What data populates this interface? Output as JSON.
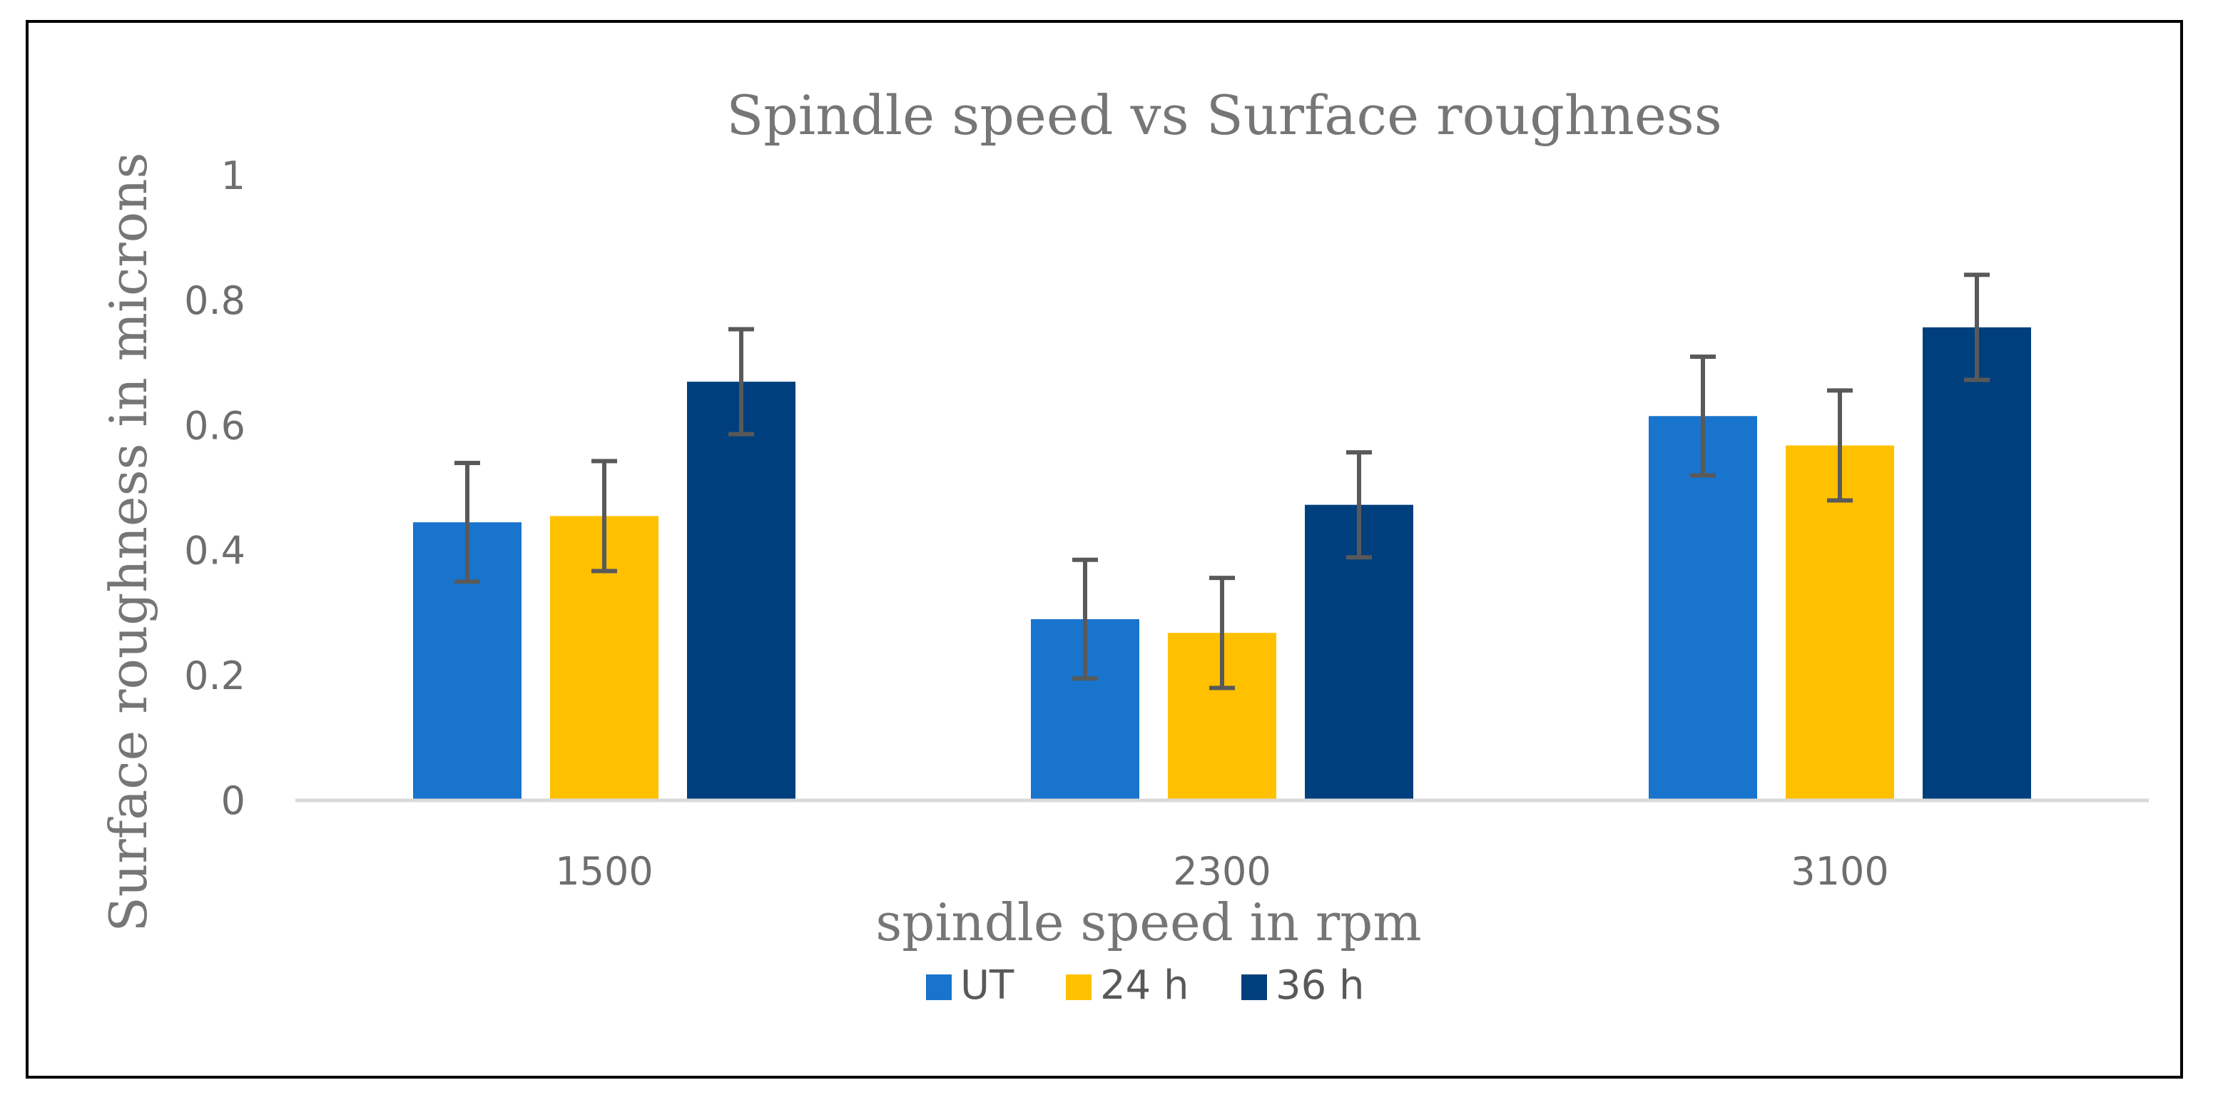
{
  "chart_data": {
    "type": "bar",
    "title": "Spindle speed vs Surface roughness",
    "xlabel": "spindle speed in rpm",
    "ylabel": "Surface roughness in microns",
    "categories": [
      "1500",
      "2300",
      "3100"
    ],
    "ylim": [
      0,
      1
    ],
    "yticks": [
      0,
      0.2,
      0.4,
      0.6,
      0.8,
      1
    ],
    "ytick_labels": [
      "0",
      "0.2",
      "0.4",
      "0.6",
      "0.8",
      "1"
    ],
    "grid": false,
    "legend_position": "bottom",
    "series": [
      {
        "name": "UT",
        "color": "#1874CD",
        "values": [
          0.445,
          0.29,
          0.615
        ],
        "errors": [
          0.095,
          0.095,
          0.095
        ]
      },
      {
        "name": "24 h",
        "color": "#FFC000",
        "values": [
          0.455,
          0.268,
          0.568
        ],
        "errors": [
          0.088,
          0.088,
          0.088
        ]
      },
      {
        "name": "36 h",
        "color": "#003F7D",
        "values": [
          0.67,
          0.473,
          0.757
        ],
        "errors": [
          0.084,
          0.084,
          0.084
        ]
      }
    ],
    "error_bar_color": "#595959",
    "axis_color": "#d9d9d9"
  }
}
